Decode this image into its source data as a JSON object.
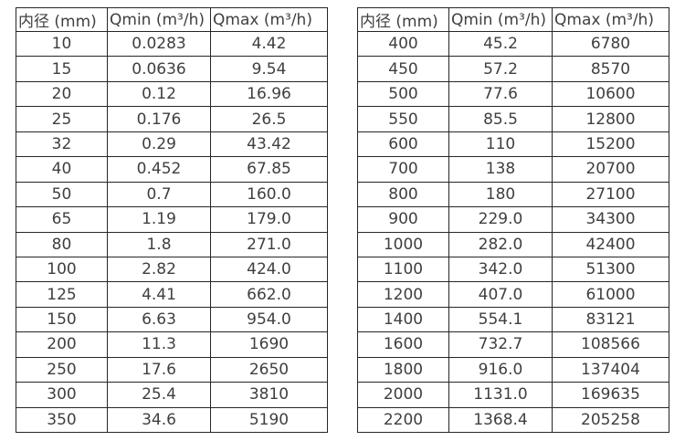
{
  "colors": {
    "background": "#ffffff",
    "border": "#262626",
    "text": "#3f3f3f"
  },
  "chart_data": [
    {
      "type": "table",
      "title": "",
      "columns": [
        "内径 (mm)",
        "Qmin (m³/h)",
        "Qmax (m³/h)"
      ],
      "rows": [
        [
          "10",
          "0.0283",
          "4.42"
        ],
        [
          "15",
          "0.0636",
          "9.54"
        ],
        [
          "20",
          "0.12",
          "16.96"
        ],
        [
          "25",
          "0.176",
          "26.5"
        ],
        [
          "32",
          "0.29",
          "43.42"
        ],
        [
          "40",
          "0.452",
          "67.85"
        ],
        [
          "50",
          "0.7",
          "160.0"
        ],
        [
          "65",
          "1.19",
          "179.0"
        ],
        [
          "80",
          "1.8",
          "271.0"
        ],
        [
          "100",
          "2.82",
          "424.0"
        ],
        [
          "125",
          "4.41",
          "662.0"
        ],
        [
          "150",
          "6.63",
          "954.0"
        ],
        [
          "200",
          "11.3",
          "1690"
        ],
        [
          "250",
          "17.6",
          "2650"
        ],
        [
          "300",
          "25.4",
          "3810"
        ],
        [
          "350",
          "34.6",
          "5190"
        ]
      ]
    },
    {
      "type": "table",
      "title": "",
      "columns": [
        "内径 (mm)",
        "Qmin (m³/h)",
        "Qmax (m³/h)"
      ],
      "rows": [
        [
          "400",
          "45.2",
          "6780"
        ],
        [
          "450",
          "57.2",
          "8570"
        ],
        [
          "500",
          "77.6",
          "10600"
        ],
        [
          "550",
          "85.5",
          "12800"
        ],
        [
          "600",
          "110",
          "15200"
        ],
        [
          "700",
          "138",
          "20700"
        ],
        [
          "800",
          "180",
          "27100"
        ],
        [
          "900",
          "229.0",
          "34300"
        ],
        [
          "1000",
          "282.0",
          "42400"
        ],
        [
          "1100",
          "342.0",
          "51300"
        ],
        [
          "1200",
          "407.0",
          "61000"
        ],
        [
          "1400",
          "554.1",
          "83121"
        ],
        [
          "1600",
          "732.7",
          "108566"
        ],
        [
          "1800",
          "916.0",
          "137404"
        ],
        [
          "2000",
          "1131.0",
          "169635"
        ],
        [
          "2200",
          "1368.4",
          "205258"
        ]
      ]
    }
  ]
}
